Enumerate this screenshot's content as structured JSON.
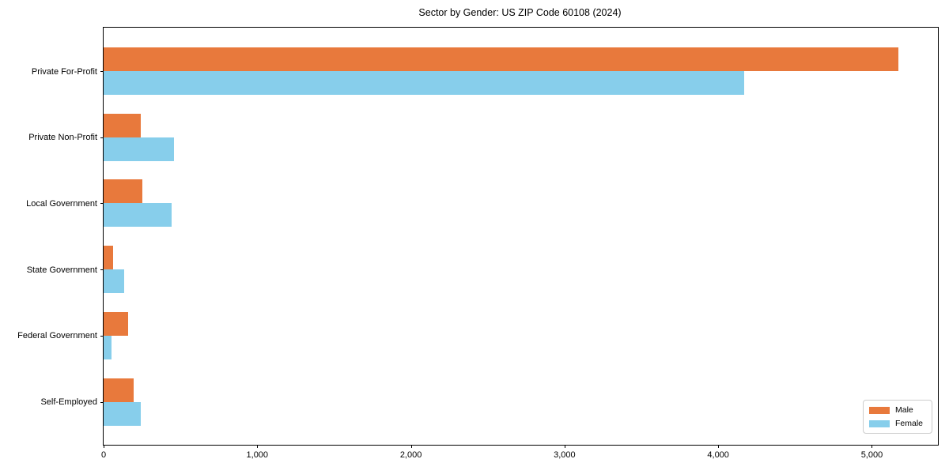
{
  "title": "Sector by Gender: US ZIP Code 60108 (2024)",
  "chart_data": {
    "type": "bar",
    "orientation": "horizontal",
    "title": "Sector by Gender: US ZIP Code 60108 (2024)",
    "categories": [
      "Private For-Profit",
      "Private Non-Profit",
      "Local Government",
      "State Government",
      "Federal Government",
      "Self-Employed"
    ],
    "series": [
      {
        "name": "Male",
        "color": "#E8793C",
        "values": [
          5173,
          240,
          252,
          62,
          158,
          194
        ]
      },
      {
        "name": "Female",
        "color": "#87CEEB",
        "values": [
          4168,
          458,
          443,
          133,
          51,
          241
        ]
      }
    ],
    "xlabel": "",
    "ylabel": "",
    "xlim": [
      0,
      5430
    ],
    "xticks": [
      0,
      1000,
      2000,
      3000,
      4000,
      5000
    ],
    "xtick_labels": [
      "0",
      "1,000",
      "2,000",
      "3,000",
      "4,000",
      "5,000"
    ],
    "grid": false,
    "legend": {
      "position": "lower right",
      "entries": [
        "Male",
        "Female"
      ]
    },
    "frame": "full-box"
  }
}
